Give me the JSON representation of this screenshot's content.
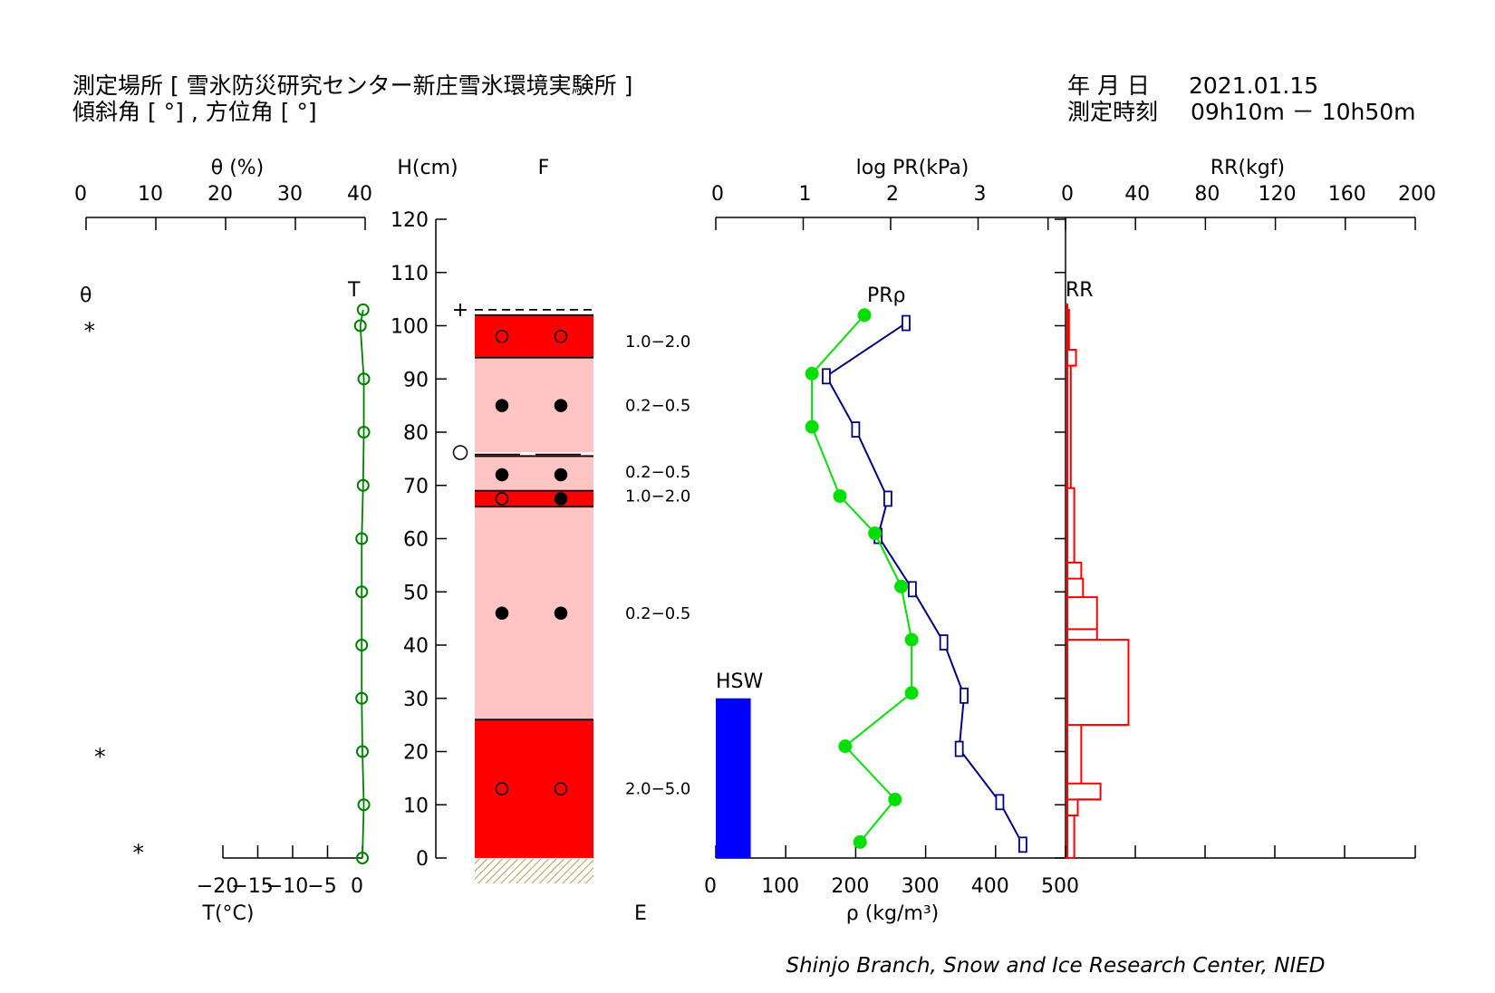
{
  "header": {
    "location_label": "測定場所",
    "location_value": "雪氷防災研究センター新庄雪氷環境実験所",
    "slope_label": "傾斜角",
    "aspect_label": "方位角",
    "date_label": "年 月 日",
    "date_value": "2021.01.15",
    "time_label": "測定時刻",
    "time_value": "09h10m － 10h50m"
  },
  "credit": "Shinjo Branch, Snow and Ice Research Center, NIED",
  "colors": {
    "temperature": "#008000",
    "pr": "#00e000",
    "density": "#000080",
    "rr": "#ff0000",
    "hsw": "#0000ff",
    "layer_dark": "#ff0000",
    "layer_light": "#ffc4c4"
  },
  "chart_data": {
    "type": "snow-pit-profile",
    "height_axis": {
      "label": "H(cm)",
      "range": [
        0,
        120
      ],
      "ticks": [
        0,
        10,
        20,
        30,
        40,
        50,
        60,
        70,
        80,
        90,
        100,
        110,
        120
      ]
    },
    "moisture_axis": {
      "label": "θ (%)",
      "ticks": [
        0,
        10,
        20,
        30,
        40
      ]
    },
    "temperature_axis": {
      "label": "T(°C)",
      "ticks": [
        -20,
        -15,
        -10,
        -5,
        0
      ]
    },
    "grain_column": {
      "top_label": "F",
      "bottom_label": "E"
    },
    "pr_axis": {
      "label": "log PR(kPa)",
      "range": [
        0,
        4
      ],
      "ticks": [
        0,
        1,
        2,
        3
      ]
    },
    "density_axis": {
      "label": "ρ (kg/m³)",
      "range": [
        0,
        500
      ],
      "ticks": [
        0,
        100,
        200,
        300,
        400,
        500
      ]
    },
    "rr_axis": {
      "label": "RR(kgf)",
      "range": [
        0,
        200
      ],
      "ticks": [
        0,
        40,
        80,
        120,
        160,
        200
      ]
    },
    "legend_labels": {
      "theta": "θ",
      "temperature": "T",
      "pr_density": "PRρ",
      "rr": "RR",
      "hsw": "HSW"
    },
    "temperature": [
      {
        "h": 103,
        "t": 0.1
      },
      {
        "h": 100,
        "t": -0.3
      },
      {
        "h": 90,
        "t": 0.2
      },
      {
        "h": 80,
        "t": 0.2
      },
      {
        "h": 70,
        "t": 0.1
      },
      {
        "h": 60,
        "t": -0.1
      },
      {
        "h": 50,
        "t": -0.1
      },
      {
        "h": 40,
        "t": -0.1
      },
      {
        "h": 30,
        "t": -0.1
      },
      {
        "h": 20,
        "t": 0.0
      },
      {
        "h": 10,
        "t": 0.2
      },
      {
        "h": 0,
        "t": 0.0
      }
    ],
    "moisture_markers": [
      {
        "h": 100,
        "theta": 0.5
      },
      {
        "h": 20,
        "theta": 2.0
      },
      {
        "h": 2,
        "theta": 7.5
      }
    ],
    "layers": [
      {
        "bottom": 94,
        "top": 102,
        "class": "dark",
        "grain": "open",
        "size": "1.0−2.0"
      },
      {
        "bottom": 75.5,
        "top": 94,
        "class": "light",
        "grain": "filled",
        "size": "0.2−0.5"
      },
      {
        "bottom": 69,
        "top": 75.5,
        "class": "light",
        "grain": "filled",
        "size": "0.2−0.5"
      },
      {
        "bottom": 66,
        "top": 69,
        "class": "dark",
        "grain": "mixed",
        "size": "1.0−2.0"
      },
      {
        "bottom": 26,
        "top": 66,
        "class": "light",
        "grain": "filled",
        "size": "0.2−0.5"
      },
      {
        "bottom": 0,
        "top": 26,
        "class": "dark",
        "grain": "open",
        "size": "2.0−5.0"
      }
    ],
    "layer_grain_heights": [
      98,
      85,
      72,
      67.5,
      46,
      13
    ],
    "layer_size_heights": [
      97,
      85,
      72.5,
      68,
      46,
      13
    ],
    "surface_height": 103,
    "ice_crust_height": 76,
    "push_resistance": [
      {
        "h": 102,
        "log_pr": 1.7
      },
      {
        "h": 91,
        "log_pr": 1.1
      },
      {
        "h": 81,
        "log_pr": 1.1
      },
      {
        "h": 68,
        "log_pr": 1.42
      },
      {
        "h": 61,
        "log_pr": 1.82
      },
      {
        "h": 51,
        "log_pr": 2.12
      },
      {
        "h": 41,
        "log_pr": 2.24
      },
      {
        "h": 31,
        "log_pr": 2.24
      },
      {
        "h": 21,
        "log_pr": 1.48
      },
      {
        "h": 11,
        "log_pr": 2.05
      },
      {
        "h": 3,
        "log_pr": 1.65
      }
    ],
    "density": [
      {
        "h": 100.5,
        "rho": 272
      },
      {
        "h": 90.5,
        "rho": 158
      },
      {
        "h": 80.5,
        "rho": 200
      },
      {
        "h": 67.5,
        "rho": 246
      },
      {
        "h": 60.5,
        "rho": 232
      },
      {
        "h": 50.5,
        "rho": 281
      },
      {
        "h": 40.5,
        "rho": 326
      },
      {
        "h": 30.5,
        "rho": 355
      },
      {
        "h": 20.5,
        "rho": 348
      },
      {
        "h": 10.5,
        "rho": 406
      },
      {
        "h": 2.5,
        "rho": 439
      }
    ],
    "ram_resistance": [
      {
        "bottom": 103,
        "top": 104,
        "rr": 1
      },
      {
        "bottom": 95.5,
        "top": 103,
        "rr": 2
      },
      {
        "bottom": 92.5,
        "top": 95.5,
        "rr": 6
      },
      {
        "bottom": 69.5,
        "top": 92.5,
        "rr": 3
      },
      {
        "bottom": 55.5,
        "top": 69.5,
        "rr": 5
      },
      {
        "bottom": 52.5,
        "top": 55.5,
        "rr": 9
      },
      {
        "bottom": 49,
        "top": 52.5,
        "rr": 10
      },
      {
        "bottom": 43,
        "top": 49,
        "rr": 18
      },
      {
        "bottom": 41,
        "top": 43,
        "rr": 18
      },
      {
        "bottom": 25,
        "top": 41,
        "rr": 36
      },
      {
        "bottom": 14,
        "top": 25,
        "rr": 9
      },
      {
        "bottom": 11,
        "top": 14,
        "rr": 20
      },
      {
        "bottom": 8,
        "top": 11,
        "rr": 7
      },
      {
        "bottom": 0,
        "top": 8,
        "rr": 5
      }
    ],
    "hsw": {
      "label": "HSW",
      "value_cm": 30,
      "width_density_units": 50
    }
  }
}
